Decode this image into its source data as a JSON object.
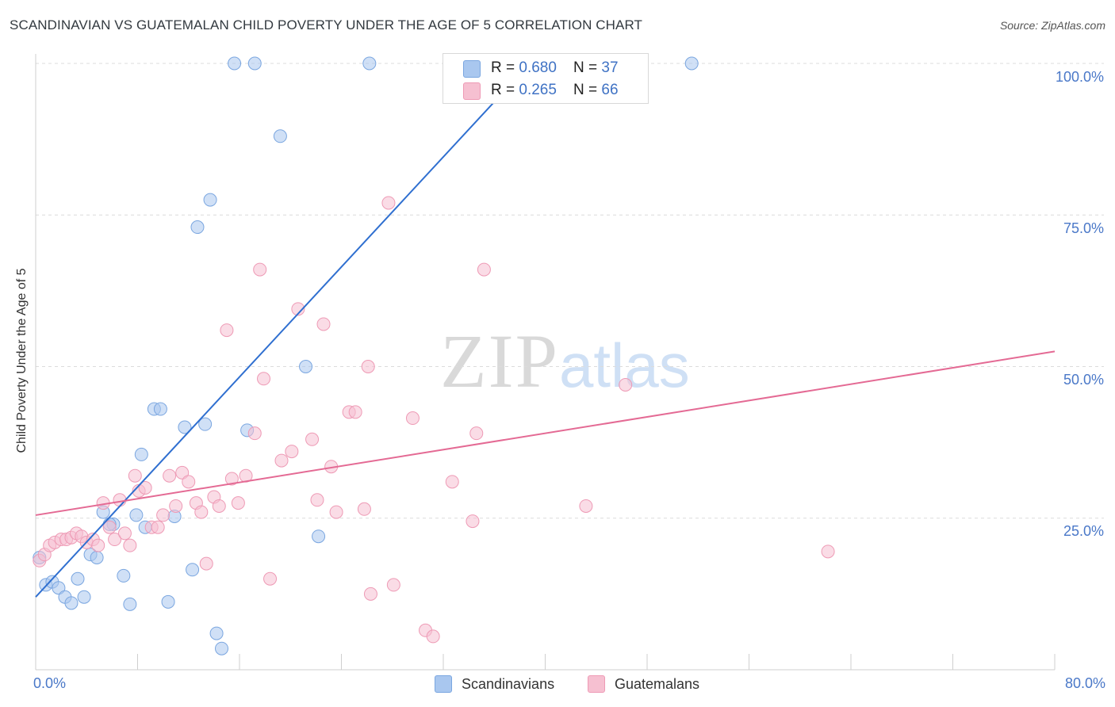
{
  "title": "SCANDINAVIAN VS GUATEMALAN CHILD POVERTY UNDER THE AGE OF 5 CORRELATION CHART",
  "source": "Source: ZipAtlas.com",
  "watermark": {
    "zip": "ZIP",
    "atlas": "atlas"
  },
  "legend": {
    "rows": [
      {
        "r_label": "R = ",
        "r_value": "0.680",
        "n_label": "N = ",
        "n_value": "37",
        "color": "#a9c7ef",
        "border": "#7aa6e0"
      },
      {
        "r_label": "R = ",
        "r_value": "0.265",
        "n_label": "N = ",
        "n_value": "66",
        "color": "#f6c0d1",
        "border": "#ee9ab5"
      }
    ]
  },
  "bottom_legend": [
    {
      "label": "Scandinavians",
      "color": "#a9c7ef",
      "border": "#7aa6e0"
    },
    {
      "label": "Guatemalans",
      "color": "#f6c0d1",
      "border": "#ee9ab5"
    }
  ],
  "chart_data": {
    "type": "scatter",
    "title": "SCANDINAVIAN VS GUATEMALAN CHILD POVERTY UNDER THE AGE OF 5 CORRELATION CHART",
    "xlabel": "",
    "ylabel": "Child Poverty Under the Age of 5",
    "xlim": [
      0,
      80
    ],
    "ylim": [
      0,
      100
    ],
    "x_tick_labels": [
      "0.0%",
      "80.0%"
    ],
    "y_ticks": [
      25,
      50,
      75,
      100
    ],
    "y_tick_labels": [
      "25.0%",
      "50.0%",
      "75.0%",
      "100.0%"
    ],
    "grid": true,
    "legend_position": "top-center",
    "series": [
      {
        "name": "Scandinavians",
        "color": "#7aa6e0",
        "fill": "#a9c7ef",
        "trend_color": "#2f6fd0",
        "trend": {
          "x": [
            0,
            38.8
          ],
          "y": [
            12,
            100
          ]
        },
        "points": [
          [
            0.3,
            18.5
          ],
          [
            0.8,
            14
          ],
          [
            1.3,
            14.5
          ],
          [
            1.8,
            13.5
          ],
          [
            2.3,
            12
          ],
          [
            2.8,
            11
          ],
          [
            3.3,
            15
          ],
          [
            3.8,
            12
          ],
          [
            4.3,
            19
          ],
          [
            4.8,
            18.5
          ],
          [
            5.3,
            26
          ],
          [
            6.1,
            24
          ],
          [
            6.9,
            15.5
          ],
          [
            7.4,
            10.8
          ],
          [
            7.9,
            25.5
          ],
          [
            8.3,
            35.5
          ],
          [
            8.6,
            23.5
          ],
          [
            9.3,
            43
          ],
          [
            9.8,
            43
          ],
          [
            10.4,
            11.2
          ],
          [
            10.9,
            25.3
          ],
          [
            11.7,
            40
          ],
          [
            12.3,
            16.5
          ],
          [
            12.7,
            73
          ],
          [
            13.3,
            40.5
          ],
          [
            13.7,
            77.5
          ],
          [
            14.2,
            6
          ],
          [
            14.6,
            3.5
          ],
          [
            15.6,
            100
          ],
          [
            16.6,
            39.5
          ],
          [
            17.2,
            100
          ],
          [
            19.2,
            88
          ],
          [
            21.2,
            50
          ],
          [
            22.2,
            22
          ],
          [
            26.2,
            100
          ],
          [
            51.5,
            100
          ],
          [
            5.8,
            24
          ]
        ]
      },
      {
        "name": "Guatemalans",
        "color": "#ee9ab5",
        "fill": "#f6c0d1",
        "trend_color": "#e46a94",
        "trend": {
          "x": [
            0,
            80
          ],
          "y": [
            25.5,
            52.5
          ]
        },
        "points": [
          [
            0.3,
            18
          ],
          [
            0.7,
            19
          ],
          [
            1.1,
            20.5
          ],
          [
            1.5,
            21
          ],
          [
            2,
            21.5
          ],
          [
            2.4,
            21.5
          ],
          [
            2.8,
            21.8
          ],
          [
            3.2,
            22.5
          ],
          [
            3.6,
            22
          ],
          [
            4,
            21
          ],
          [
            4.5,
            21.5
          ],
          [
            4.9,
            20.5
          ],
          [
            5.3,
            27.5
          ],
          [
            5.8,
            23.5
          ],
          [
            6.2,
            21.5
          ],
          [
            6.6,
            28
          ],
          [
            7,
            22.5
          ],
          [
            7.4,
            20.5
          ],
          [
            7.8,
            32
          ],
          [
            8.1,
            29.5
          ],
          [
            8.6,
            30
          ],
          [
            9.1,
            23.5
          ],
          [
            9.6,
            23.5
          ],
          [
            10,
            25.5
          ],
          [
            10.5,
            32
          ],
          [
            11,
            27
          ],
          [
            11.5,
            32.5
          ],
          [
            12,
            31
          ],
          [
            12.6,
            27.5
          ],
          [
            13,
            26
          ],
          [
            13.4,
            17.5
          ],
          [
            14,
            28.5
          ],
          [
            14.4,
            27
          ],
          [
            15,
            56
          ],
          [
            15.4,
            31.5
          ],
          [
            15.9,
            27.5
          ],
          [
            16.5,
            32
          ],
          [
            17.2,
            39
          ],
          [
            17.6,
            66
          ],
          [
            17.9,
            48
          ],
          [
            18.4,
            15
          ],
          [
            19.3,
            34.5
          ],
          [
            20.1,
            36
          ],
          [
            20.6,
            59.5
          ],
          [
            21.7,
            38
          ],
          [
            22.1,
            28
          ],
          [
            22.6,
            57
          ],
          [
            23.2,
            33.5
          ],
          [
            23.6,
            26
          ],
          [
            24.6,
            42.5
          ],
          [
            25.1,
            42.5
          ],
          [
            25.8,
            26.5
          ],
          [
            26.1,
            50
          ],
          [
            26.3,
            12.5
          ],
          [
            28.1,
            14
          ],
          [
            27.7,
            77
          ],
          [
            29.6,
            41.5
          ],
          [
            30.6,
            6.5
          ],
          [
            31.2,
            5.5
          ],
          [
            32.7,
            31
          ],
          [
            34.3,
            24.5
          ],
          [
            34.6,
            39
          ],
          [
            35.2,
            66
          ],
          [
            43.2,
            27
          ],
          [
            46.3,
            47
          ],
          [
            62.2,
            19.5
          ]
        ]
      }
    ]
  }
}
